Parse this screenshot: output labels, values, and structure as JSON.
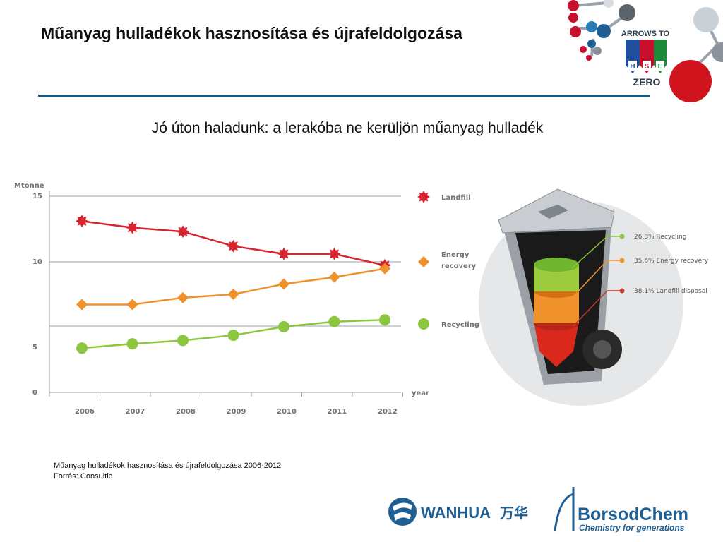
{
  "header": {
    "title": "Műanyag hulladékok hasznosítása és újrafeldolgozása",
    "subtitle": "Jó úton haladunk: a lerakóba ne kerüljön műanyag hulladék"
  },
  "badge": {
    "line1": "ARROWS TO",
    "letters": [
      "H",
      "S",
      "E"
    ],
    "line2": "ZERO"
  },
  "chart_data": {
    "type": "line",
    "ylabel": "Mtonne",
    "xlabel": "year",
    "x": [
      "2006",
      "2007",
      "2008",
      "2009",
      "2010",
      "2011",
      "2012"
    ],
    "yticks": [
      "15",
      "10",
      "5",
      "0"
    ],
    "series": [
      {
        "name": "Landfill",
        "color": "#d8242e",
        "values": [
          13.1,
          12.6,
          12.3,
          11.2,
          10.6,
          10.6,
          9.8
        ]
      },
      {
        "name": "Energy recovery",
        "color": "#f0922c",
        "values": [
          7.5,
          7.5,
          7.9,
          8.1,
          8.7,
          9.1,
          9.6
        ]
      },
      {
        "name": "Recycling",
        "color": "#8cc63f",
        "values": [
          4.9,
          5.2,
          5.4,
          5.7,
          6.2,
          6.5,
          6.6
        ]
      }
    ],
    "legend_position": "right",
    "grid": true
  },
  "bin_breakdown": [
    {
      "percent": "26.3%",
      "label": "Recycling",
      "color": "#8cc63f"
    },
    {
      "percent": "35.6%",
      "label": "Energy recovery",
      "color": "#f0922c"
    },
    {
      "percent": "38.1%",
      "label": "Landfill disposal",
      "color": "#c0392b"
    }
  ],
  "footer": {
    "source_line1": "Műanyag hulladékok hasznosítása és újrafeldolgozása 2006-2012",
    "source_line2": "Forrás: Consultic"
  },
  "logos": {
    "wanhua": {
      "text": "WANHUA",
      "cjk": "万华"
    },
    "borsodchem": {
      "name": "BorsodChem",
      "tagline": "Chemistry for generations"
    }
  }
}
